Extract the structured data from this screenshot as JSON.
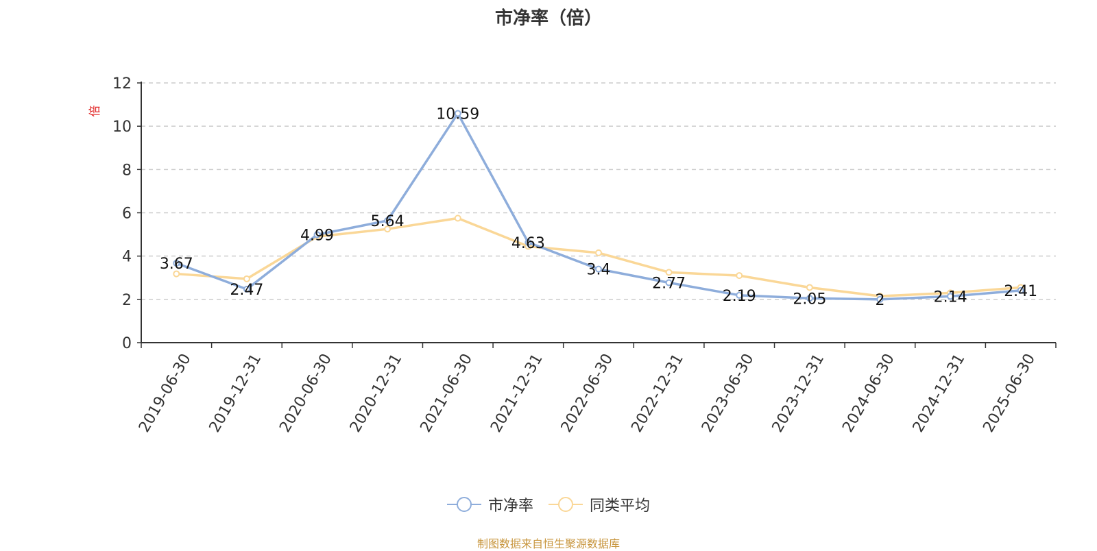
{
  "chart_data": {
    "type": "line",
    "title": "市净率（倍）",
    "ylabel": "倍",
    "xlabel": "",
    "ylim": [
      0,
      12
    ],
    "yticks": [
      0,
      2,
      4,
      6,
      8,
      10,
      12
    ],
    "grid": true,
    "legend_position": "bottom",
    "categories": [
      "2019-06-30",
      "2019-12-31",
      "2020-06-30",
      "2020-12-31",
      "2021-06-30",
      "2021-12-31",
      "2022-06-30",
      "2022-12-31",
      "2023-06-30",
      "2023-12-31",
      "2024-06-30",
      "2024-12-31",
      "2025-06-30"
    ],
    "series": [
      {
        "name": "市净率",
        "color": "#8eaddb",
        "values": [
          3.67,
          2.47,
          4.99,
          5.64,
          10.59,
          4.63,
          3.4,
          2.77,
          2.19,
          2.05,
          2,
          2.14,
          2.41
        ],
        "labels": [
          "3.67",
          "2.47",
          "4.99",
          "5.64",
          "10.59",
          "4.63",
          "3.4",
          "2.77",
          "2.19",
          "2.05",
          "2",
          "2.14",
          "2.41"
        ]
      },
      {
        "name": "同类平均",
        "color": "#fad797",
        "values": [
          3.18,
          2.95,
          4.9,
          5.25,
          5.75,
          4.45,
          4.15,
          3.25,
          3.1,
          2.55,
          2.15,
          2.3,
          2.55
        ]
      }
    ]
  },
  "source_note": "制图数据来自恒生聚源数据库"
}
